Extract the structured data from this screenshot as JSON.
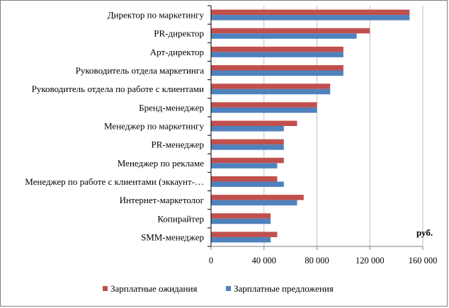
{
  "chart_data": {
    "type": "bar",
    "orientation": "horizontal",
    "categories": [
      "Директор по маркетингу",
      "PR-директор",
      "Арт-директор",
      "Руководитель отдела маркетинга",
      "Руководитель отдела по работе с клиентами",
      "Бренд-менеджер",
      "Менеджер по маркетингу",
      "PR-менеджер",
      "Менеджер по рекламе",
      "Менеджер по работе с клиентами (эккаунт-…",
      "Интернет-маркетолог",
      "Копирайтер",
      "SMM-менеджер"
    ],
    "series": [
      {
        "name": "Зарплатные ожидания",
        "color": "#c0504d",
        "values": [
          150000,
          120000,
          100000,
          100000,
          90000,
          80000,
          65000,
          55000,
          55000,
          50000,
          70000,
          45000,
          50000
        ]
      },
      {
        "name": "Зарплатные предложения",
        "color": "#4f81bd",
        "values": [
          150000,
          110000,
          100000,
          100000,
          90000,
          80000,
          55000,
          55000,
          50000,
          55000,
          65000,
          45000,
          45000
        ]
      }
    ],
    "xlim": [
      0,
      160000
    ],
    "xticks": [
      "0",
      "40 000",
      "80 000",
      "120 000",
      "160 000"
    ],
    "unit_label": "руб.",
    "grid": "vertical",
    "legend": "bottom"
  }
}
